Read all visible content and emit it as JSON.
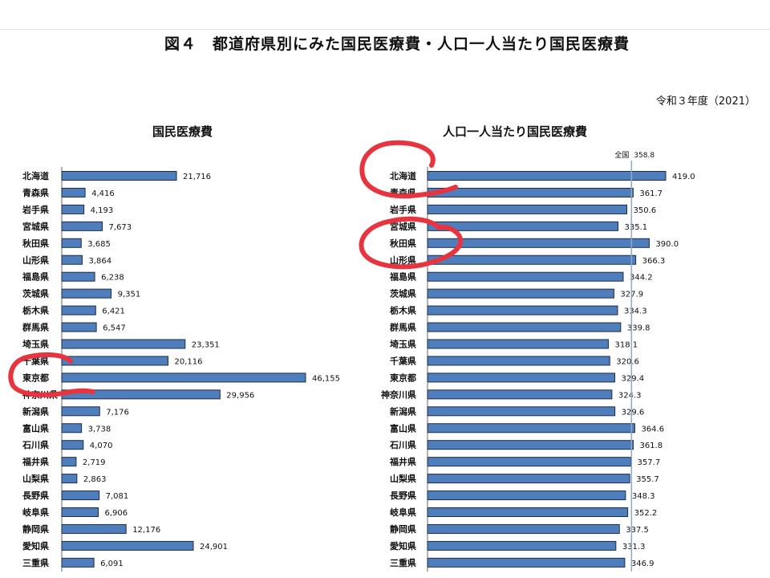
{
  "figure_title": "図４　都道府県別にみた国民医療費・人口一人当たり国民医療費",
  "year_label": "令和３年度（2021）",
  "chart_data": [
    {
      "type": "bar",
      "orientation": "horizontal",
      "title": "国民医療費",
      "categories": [
        "北海道",
        "青森県",
        "岩手県",
        "宮城県",
        "秋田県",
        "山形県",
        "福島県",
        "茨城県",
        "栃木県",
        "群馬県",
        "埼玉県",
        "千葉県",
        "東京都",
        "神奈川県",
        "新潟県",
        "富山県",
        "石川県",
        "福井県",
        "山梨県",
        "長野県",
        "岐阜県",
        "静岡県",
        "愛知県",
        "三重県"
      ],
      "values": [
        21716,
        4416,
        4193,
        7673,
        3685,
        3864,
        6238,
        9351,
        6421,
        6547,
        23351,
        20116,
        46155,
        29956,
        7176,
        3738,
        4070,
        2719,
        2863,
        7081,
        6906,
        12176,
        24901,
        6091
      ],
      "value_labels": [
        "21,716",
        "4,416",
        "4,193",
        "7,673",
        "3,685",
        "3,864",
        "6,238",
        "9,351",
        "6,421",
        "6,547",
        "23,351",
        "20,116",
        "46,155",
        "29,956",
        "7,176",
        "3,738",
        "4,070",
        "2,719",
        "2,863",
        "7,081",
        "6,906",
        "12,176",
        "24,901",
        "6,091"
      ],
      "xlim": [
        0,
        48000
      ]
    },
    {
      "type": "bar",
      "orientation": "horizontal",
      "title": "人口一人当たり国民医療費",
      "categories": [
        "北海道",
        "青森県",
        "岩手県",
        "宮城県",
        "秋田県",
        "山形県",
        "福島県",
        "茨城県",
        "栃木県",
        "群馬県",
        "埼玉県",
        "千葉県",
        "東京都",
        "神奈川県",
        "新潟県",
        "富山県",
        "石川県",
        "福井県",
        "山梨県",
        "長野県",
        "岐阜県",
        "静岡県",
        "愛知県",
        "三重県"
      ],
      "values": [
        419.0,
        361.7,
        350.6,
        335.1,
        390.0,
        366.3,
        344.2,
        327.9,
        334.3,
        339.8,
        318.1,
        320.6,
        329.4,
        324.3,
        329.6,
        364.6,
        361.8,
        357.7,
        355.7,
        348.3,
        352.2,
        337.5,
        331.3,
        346.9
      ],
      "value_labels": [
        "419.0",
        "361.7",
        "350.6",
        "335.1",
        "390.0",
        "366.3",
        "344.2",
        "327.9",
        "334.3",
        "339.8",
        "318.1",
        "320.6",
        "329.4",
        "324.3",
        "329.6",
        "364.6",
        "361.8",
        "357.7",
        "355.7",
        "348.3",
        "352.2",
        "337.5",
        "331.3",
        "346.9"
      ],
      "reference_line": {
        "label": "全国",
        "value": 358.8,
        "value_label": "358.8"
      },
      "xlim": [
        0,
        450
      ]
    }
  ],
  "annotations": [
    {
      "shape": "circle",
      "color": "#e8343f",
      "target": "北海道"
    },
    {
      "shape": "circle",
      "color": "#e8343f",
      "target": "秋田県"
    },
    {
      "shape": "circle",
      "color": "#e8343f",
      "target": "東京都"
    }
  ]
}
